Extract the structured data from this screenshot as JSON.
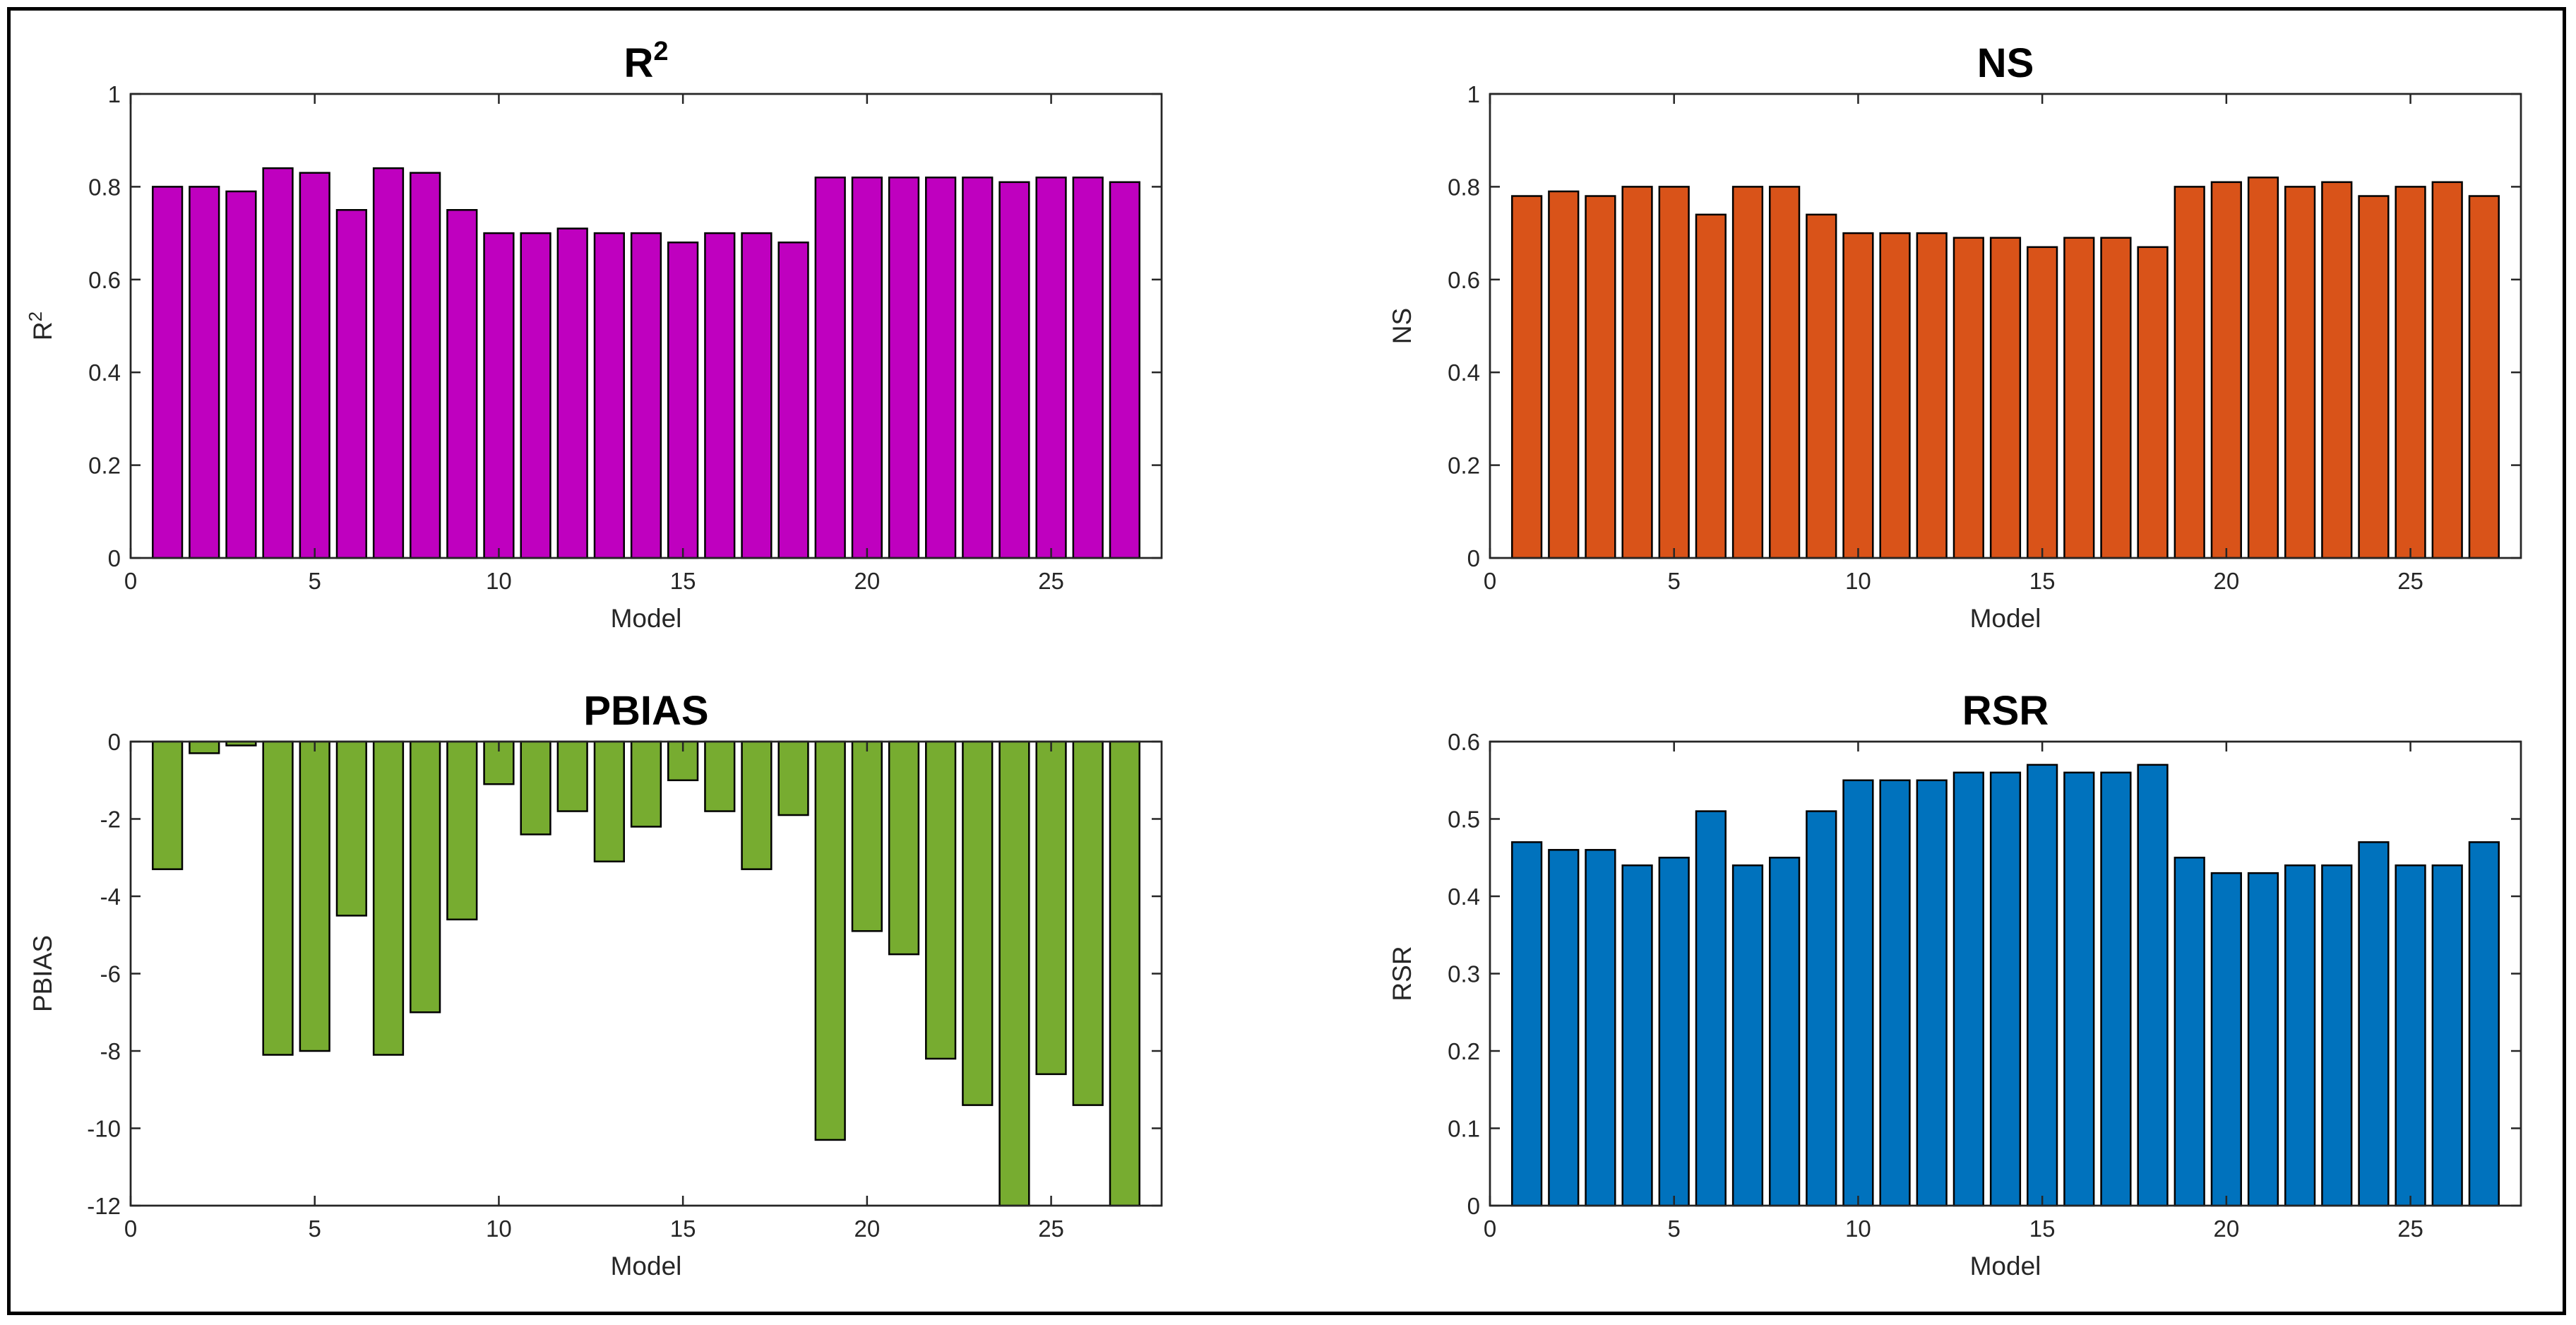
{
  "chart_data": [
    {
      "type": "bar",
      "title": "R",
      "title_sup": "2",
      "xlabel": "Model",
      "ylabel": "R",
      "ylabel_sup": "2",
      "color": "#BF00BF",
      "xlim": [
        0,
        28
      ],
      "ylim": [
        0,
        1
      ],
      "xticks": [
        0,
        5,
        10,
        15,
        20,
        25
      ],
      "yticks": [
        0,
        0.2,
        0.4,
        0.6,
        0.8,
        1
      ],
      "yticklabels": [
        "0",
        "0.2",
        "0.4",
        "0.6",
        "0.8",
        "1"
      ],
      "x": [
        1,
        2,
        3,
        4,
        5,
        6,
        7,
        8,
        9,
        10,
        11,
        12,
        13,
        14,
        15,
        16,
        17,
        18,
        19,
        20,
        21,
        22,
        23,
        24,
        25,
        26,
        27
      ],
      "values": [
        0.8,
        0.8,
        0.79,
        0.84,
        0.83,
        0.75,
        0.84,
        0.83,
        0.75,
        0.7,
        0.7,
        0.71,
        0.7,
        0.7,
        0.68,
        0.7,
        0.7,
        0.68,
        0.82,
        0.82,
        0.82,
        0.82,
        0.82,
        0.81,
        0.82,
        0.82,
        0.81
      ]
    },
    {
      "type": "bar",
      "title": "NS",
      "xlabel": "Model",
      "ylabel": "NS",
      "color": "#D95319",
      "xlim": [
        0,
        28
      ],
      "ylim": [
        0,
        1
      ],
      "xticks": [
        0,
        5,
        10,
        15,
        20,
        25
      ],
      "yticks": [
        0,
        0.2,
        0.4,
        0.6,
        0.8,
        1
      ],
      "yticklabels": [
        "0",
        "0.2",
        "0.4",
        "0.6",
        "0.8",
        "1"
      ],
      "x": [
        1,
        2,
        3,
        4,
        5,
        6,
        7,
        8,
        9,
        10,
        11,
        12,
        13,
        14,
        15,
        16,
        17,
        18,
        19,
        20,
        21,
        22,
        23,
        24,
        25,
        26,
        27
      ],
      "values": [
        0.78,
        0.79,
        0.78,
        0.8,
        0.8,
        0.74,
        0.8,
        0.8,
        0.74,
        0.7,
        0.7,
        0.7,
        0.69,
        0.69,
        0.67,
        0.69,
        0.69,
        0.67,
        0.8,
        0.81,
        0.82,
        0.8,
        0.81,
        0.78,
        0.8,
        0.81,
        0.78
      ]
    },
    {
      "type": "bar",
      "title": "PBIAS",
      "xlabel": "Model",
      "ylabel": "PBIAS",
      "color": "#77AC30",
      "xlim": [
        0,
        28
      ],
      "ylim": [
        -12,
        0
      ],
      "xticks": [
        0,
        5,
        10,
        15,
        20,
        25
      ],
      "yticks": [
        -12,
        -10,
        -8,
        -6,
        -4,
        -2,
        0
      ],
      "yticklabels": [
        "-12",
        "-10",
        "-8",
        "-6",
        "-4",
        "-2",
        "0"
      ],
      "x": [
        1,
        2,
        3,
        4,
        5,
        6,
        7,
        8,
        9,
        10,
        11,
        12,
        13,
        14,
        15,
        16,
        17,
        18,
        19,
        20,
        21,
        22,
        23,
        24,
        25,
        26,
        27
      ],
      "values": [
        -3.3,
        -0.3,
        -0.1,
        -8.1,
        -8.0,
        -4.5,
        -8.1,
        -7.0,
        -4.6,
        -1.1,
        -2.4,
        -1.8,
        -3.1,
        -2.2,
        -1.0,
        -1.8,
        -3.3,
        -1.9,
        -10.3,
        -4.9,
        -5.5,
        -8.2,
        -9.4,
        -12.5,
        -8.6,
        -9.4,
        -12.5
      ]
    },
    {
      "type": "bar",
      "title": "RSR",
      "xlabel": "Model",
      "ylabel": "RSR",
      "color": "#0072BD",
      "xlim": [
        0,
        28
      ],
      "ylim": [
        0,
        0.6
      ],
      "xticks": [
        0,
        5,
        10,
        15,
        20,
        25
      ],
      "yticks": [
        0,
        0.1,
        0.2,
        0.3,
        0.4,
        0.5,
        0.6
      ],
      "yticklabels": [
        "0",
        "0.1",
        "0.2",
        "0.3",
        "0.4",
        "0.5",
        "0.6"
      ],
      "x": [
        1,
        2,
        3,
        4,
        5,
        6,
        7,
        8,
        9,
        10,
        11,
        12,
        13,
        14,
        15,
        16,
        17,
        18,
        19,
        20,
        21,
        22,
        23,
        24,
        25,
        26,
        27
      ],
      "values": [
        0.47,
        0.46,
        0.46,
        0.44,
        0.45,
        0.51,
        0.44,
        0.45,
        0.51,
        0.55,
        0.55,
        0.55,
        0.56,
        0.56,
        0.57,
        0.56,
        0.56,
        0.57,
        0.45,
        0.43,
        0.43,
        0.44,
        0.44,
        0.47,
        0.44,
        0.44,
        0.47
      ]
    }
  ]
}
